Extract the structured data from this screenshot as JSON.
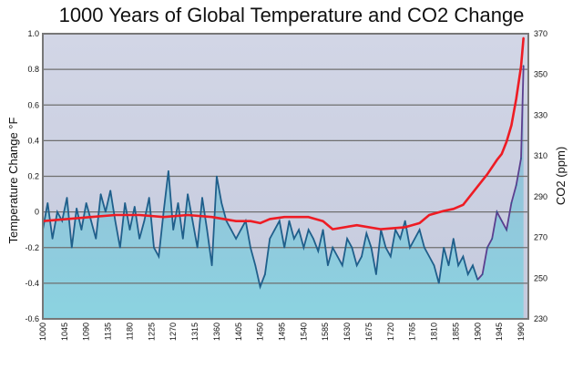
{
  "chart_data": {
    "type": "line",
    "title": "1000 Years of Global Temperature and CO2 Change",
    "xlabel": "",
    "ylabel": "Temperature Change °F",
    "y2label": "CO2 (ppm)",
    "xlim": [
      1000,
      2005
    ],
    "ylim": [
      -0.6,
      1.0
    ],
    "y2lim": [
      230,
      370
    ],
    "grid": true,
    "x_ticks": [
      "1000",
      "1045",
      "1090",
      "1135",
      "1180",
      "1225",
      "1270",
      "1315",
      "1360",
      "1405",
      "1450",
      "1495",
      "1540",
      "1585",
      "1630",
      "1675",
      "1720",
      "1765",
      "1810",
      "1855",
      "1900",
      "1945",
      "1990"
    ],
    "y_ticks": [
      "1.0",
      "0.8",
      "0.6",
      "0.4",
      "0.2",
      "0",
      "-0.2",
      "-0.4",
      "-0.6"
    ],
    "y2_ticks": [
      "370",
      "350",
      "330",
      "310",
      "290",
      "270",
      "250",
      "230"
    ],
    "colors": {
      "temperature": "#1f5f8b",
      "temperature_recent": "#5b3f8f",
      "co2": "#ee1c24",
      "plot_bg": "#cdd2e3",
      "fill_top": "#a8c6dc",
      "fill_bottom": "#8bd3e1"
    },
    "series": [
      {
        "axis": "left",
        "x": [
          1000,
          1010,
          1020,
          1030,
          1040,
          1050,
          1060,
          1070,
          1080,
          1090,
          1100,
          1110,
          1120,
          1130,
          1140,
          1150,
          1160,
          1170,
          1180,
          1190,
          1200,
          1210,
          1220,
          1230,
          1240,
          1250,
          1260,
          1270,
          1280,
          1290,
          1300,
          1310,
          1320,
          1330,
          1340,
          1350,
          1360,
          1370,
          1380,
          1390,
          1400,
          1410,
          1420,
          1430,
          1440,
          1450,
          1460,
          1470,
          1480,
          1490,
          1500,
          1510,
          1520,
          1530,
          1540,
          1550,
          1560,
          1570,
          1580,
          1590,
          1600,
          1610,
          1620,
          1630,
          1640,
          1650,
          1660,
          1670,
          1680,
          1690,
          1700,
          1710,
          1720,
          1730,
          1740,
          1750,
          1760,
          1770,
          1780,
          1790,
          1800,
          1810,
          1820,
          1830,
          1840,
          1850,
          1860,
          1870,
          1880,
          1890,
          1900,
          1910,
          1920,
          1930,
          1940,
          1950,
          1960,
          1970,
          1980,
          1990,
          1995
        ],
        "y": [
          -0.1,
          0.05,
          -0.15,
          0.0,
          -0.05,
          0.08,
          -0.2,
          0.02,
          -0.1,
          0.05,
          -0.05,
          -0.15,
          0.1,
          0.0,
          0.12,
          -0.05,
          -0.2,
          0.05,
          -0.1,
          0.03,
          -0.15,
          -0.05,
          0.08,
          -0.2,
          -0.25,
          0.0,
          0.23,
          -0.1,
          0.05,
          -0.15,
          0.1,
          -0.05,
          -0.2,
          0.08,
          -0.1,
          -0.3,
          0.2,
          0.05,
          -0.05,
          -0.1,
          -0.15,
          -0.1,
          -0.05,
          -0.2,
          -0.3,
          -0.42,
          -0.35,
          -0.15,
          -0.1,
          -0.05,
          -0.2,
          -0.05,
          -0.15,
          -0.1,
          -0.2,
          -0.1,
          -0.15,
          -0.22,
          -0.1,
          -0.3,
          -0.2,
          -0.25,
          -0.3,
          -0.15,
          -0.2,
          -0.3,
          -0.25,
          -0.12,
          -0.2,
          -0.35,
          -0.1,
          -0.2,
          -0.25,
          -0.1,
          -0.15,
          -0.05,
          -0.2,
          -0.15,
          -0.1,
          -0.2,
          -0.25,
          -0.3,
          -0.4,
          -0.2,
          -0.3,
          -0.15,
          -0.3,
          -0.25,
          -0.35,
          -0.3,
          -0.38,
          -0.35,
          -0.2,
          -0.15,
          0.0,
          -0.05,
          -0.1,
          0.05,
          0.15,
          0.3,
          0.82
        ]
      },
      {
        "axis": "right",
        "x": [
          1000,
          1050,
          1100,
          1150,
          1200,
          1250,
          1300,
          1350,
          1400,
          1430,
          1450,
          1470,
          1500,
          1550,
          1580,
          1600,
          1650,
          1700,
          1750,
          1780,
          1800,
          1830,
          1850,
          1870,
          1900,
          1920,
          1940,
          1950,
          1960,
          1970,
          1980,
          1990,
          1995
        ],
        "y": [
          278,
          279,
          280,
          281,
          281,
          280,
          281,
          280,
          278,
          278,
          277,
          279,
          280,
          280,
          278,
          274,
          276,
          274,
          275,
          277,
          281,
          283,
          284,
          286,
          295,
          301,
          308,
          311,
          317,
          325,
          338,
          354,
          368
        ]
      }
    ]
  }
}
